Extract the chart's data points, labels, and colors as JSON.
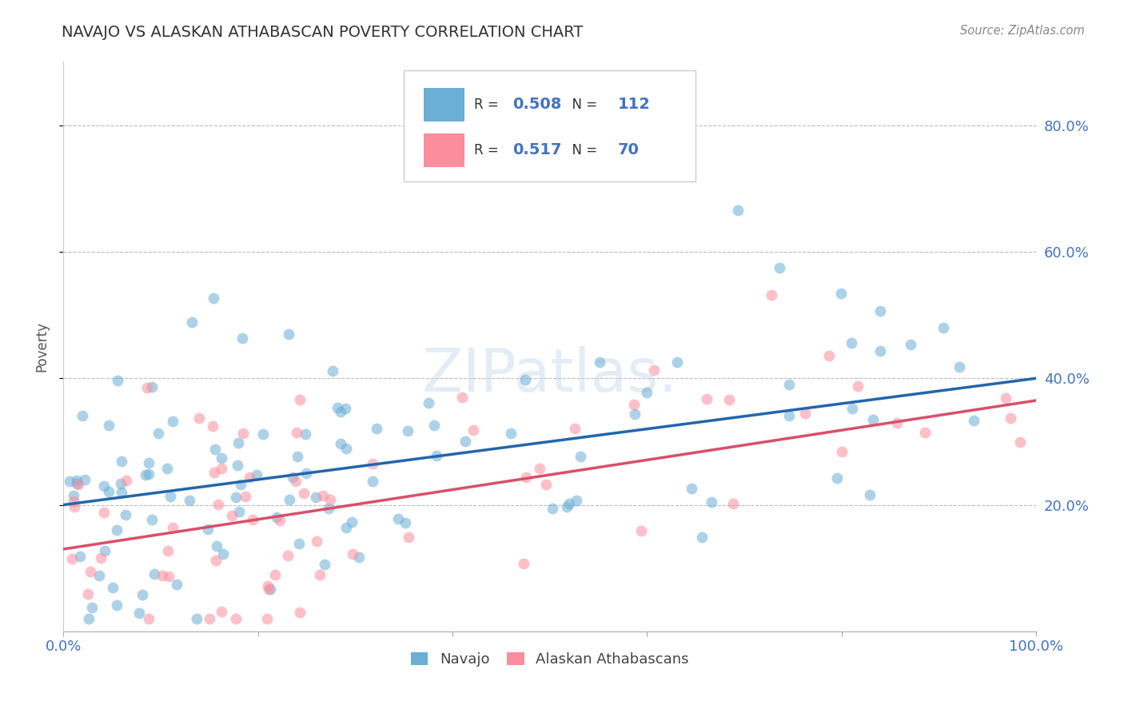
{
  "title": "NAVAJO VS ALASKAN ATHABASCAN POVERTY CORRELATION CHART",
  "source": "Source: ZipAtlas.com",
  "ylabel": "Poverty",
  "x_tick_labels_edge": [
    "0.0%",
    "100.0%"
  ],
  "x_tick_vals": [
    0.0,
    20.0,
    40.0,
    60.0,
    80.0,
    100.0
  ],
  "y_tick_vals": [
    20.0,
    40.0,
    60.0,
    80.0
  ],
  "y_tick_labels": [
    "20.0%",
    "40.0%",
    "60.0%",
    "80.0%"
  ],
  "xlim": [
    0.0,
    100.0
  ],
  "ylim": [
    0.0,
    90.0
  ],
  "navajo_R": 0.508,
  "navajo_N": 112,
  "athabascan_R": 0.517,
  "athabascan_N": 70,
  "navajo_color": "#6baed6",
  "athabascan_color": "#fc8d9c",
  "navajo_line_color": "#2166ac",
  "athabascan_line_color": "#d94f6a",
  "background_color": "#ffffff",
  "grid_color": "#bbbbbb",
  "title_color": "#333333",
  "axis_label_color": "#555555",
  "tick_color": "#4472c4",
  "source_color": "#888888",
  "legend_text_color": "#333333",
  "legend_val_color": "#4472c4",
  "navajo_intercept": 20.0,
  "navajo_slope": 0.2,
  "athabascan_intercept": 13.0,
  "athabascan_slope": 0.235,
  "seed": 42
}
